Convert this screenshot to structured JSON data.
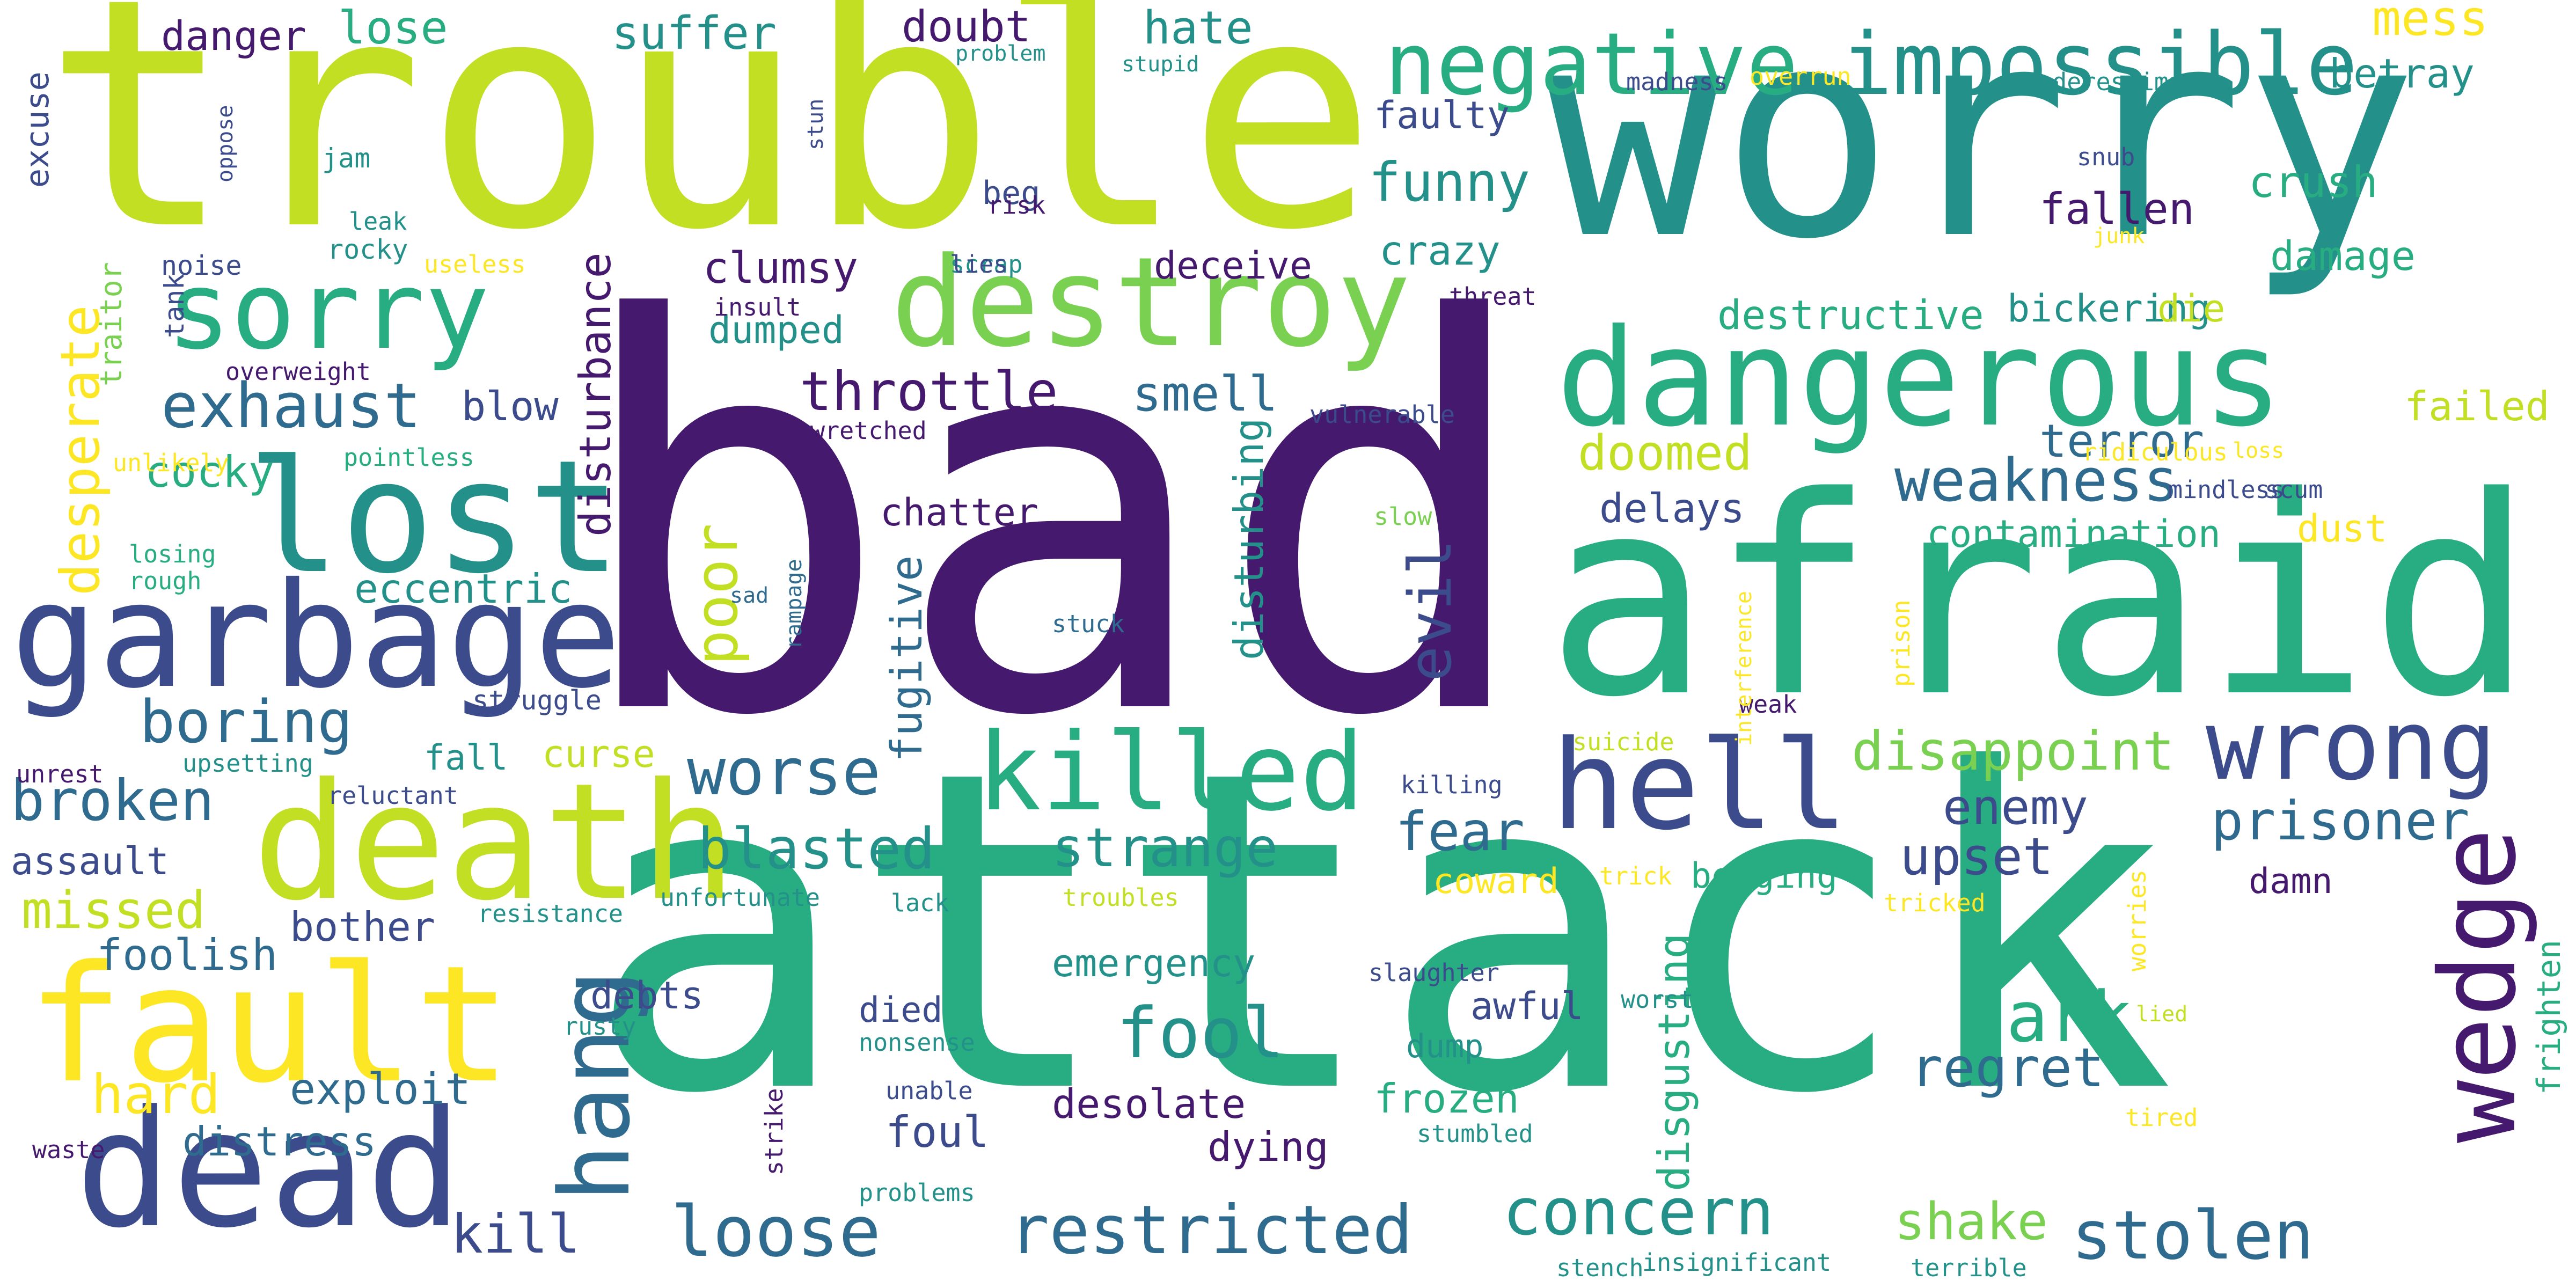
{
  "palette": {
    "dark_purple": "#45196e",
    "indigo": "#3b4b8c",
    "blue": "#2f6b8e",
    "teal": "#23918a",
    "sea_green": "#27ad81",
    "green": "#3dbc74",
    "light_green": "#7ad151",
    "lime": "#c2df23",
    "yellow": "#fde725"
  },
  "words": [
    "bad",
    "attack",
    "worry",
    "trouble",
    "afraid",
    "dead",
    "fault",
    "death",
    "garbage",
    "lost",
    "dangerous",
    "destroy",
    "sorry",
    "killed",
    "hell",
    "wrong",
    "wedge",
    "negative",
    "impossible",
    "hang",
    "restricted",
    "stolen",
    "fool",
    "dark",
    "loose",
    "exhaust",
    "worse",
    "concern",
    "weakness",
    "boring",
    "broken",
    "blasted",
    "strange",
    "regret",
    "prisoner",
    "throttle",
    "upset",
    "missed",
    "funny",
    "hard",
    "evil",
    "poor",
    "disappoint",
    "enemy",
    "kill",
    "shake",
    "fear",
    "disturbance",
    "fugitive",
    "disturbing",
    "disgusting",
    "doomed",
    "terror",
    "desperate",
    "suffer",
    "lose",
    "hate",
    "danger",
    "doubt",
    "mess",
    "betray",
    "crush",
    "damage",
    "fallen",
    "destructive",
    "bickering",
    "die",
    "failed",
    "smell",
    "deceive",
    "crazy",
    "faulty",
    "clumsy",
    "dumped",
    "blow",
    "cocky",
    "eccentric",
    "chatter",
    "delays",
    "contamination",
    "dust",
    "foolish",
    "exploit",
    "distress",
    "bother",
    "debts",
    "died",
    "foul",
    "dying",
    "desolate",
    "emergency",
    "awful",
    "dump",
    "frozen",
    "coward",
    "begging",
    "damn",
    "frighten",
    "assault",
    "fall",
    "curse",
    "struggle",
    "excuse",
    "beg",
    "jam",
    "leak",
    "rocky",
    "noise",
    "useless",
    "tank",
    "traitor",
    "overweight",
    "pointless",
    "unlikely",
    "losing",
    "rough",
    "unrest",
    "upsetting",
    "reluctant",
    "resistance",
    "unfortunate",
    "lack",
    "troubles",
    "trick",
    "tricked",
    "worries",
    "lied",
    "tired",
    "stumbled",
    "slaughter",
    "worst",
    "strike",
    "waste",
    "problems",
    "unable",
    "nonsense",
    "rusty",
    "stench",
    "insignificant",
    "terrible",
    "killing",
    "suicide",
    "weak",
    "prison",
    "interference",
    "stuck",
    "sad",
    "rampage",
    "slow",
    "mindless",
    "scum",
    "ridiculous",
    "loss",
    "vulnerable",
    "wretched",
    "threat",
    "insult",
    "scrap",
    "lies",
    "risk",
    "stun",
    "oppose",
    "problem",
    "stupid",
    "madness",
    "overrun",
    "underestimate",
    "snub",
    "junk"
  ]
}
